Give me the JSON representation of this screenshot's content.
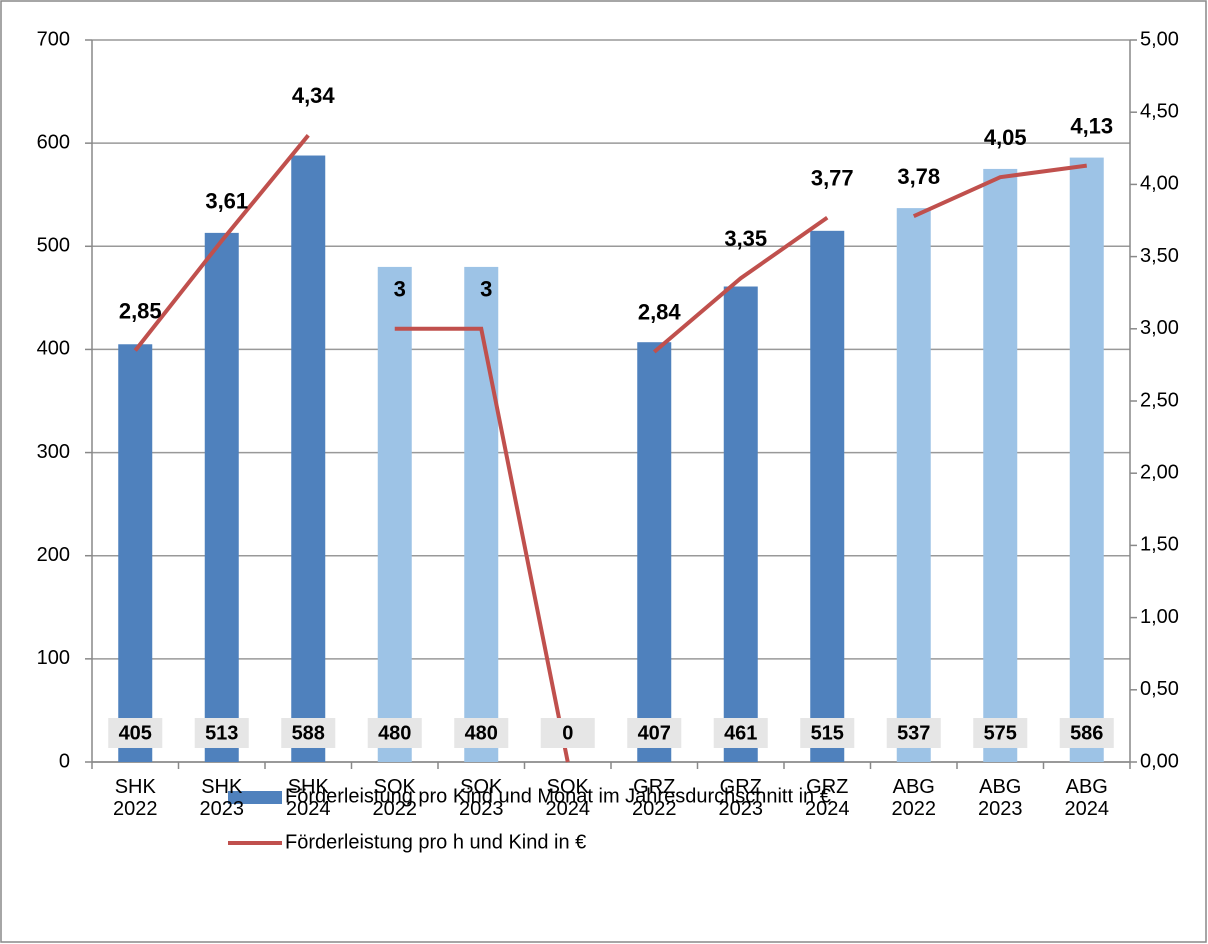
{
  "chart_data": {
    "type": "bar_line",
    "categories": [
      "SHK 2022",
      "SHK 2023",
      "SHK 2024",
      "SOK 2022",
      "SOK 2023",
      "SOK 2024",
      "GRZ 2022",
      "GRZ 2023",
      "GRZ 2024",
      "ABG 2022",
      "ABG 2023",
      "ABG 2024"
    ],
    "series": [
      {
        "name": "Förderleistung pro Kind und Monat im Jahresdurchschnitt in €",
        "type": "bar",
        "color": "#4f81bd",
        "colors": [
          "#4f81bd",
          "#4f81bd",
          "#4f81bd",
          "#9dc3e6",
          "#9dc3e6",
          "#9dc3e6",
          "#4f81bd",
          "#4f81bd",
          "#4f81bd",
          "#9dc3e6",
          "#9dc3e6",
          "#9dc3e6"
        ],
        "values": [
          405,
          513,
          588,
          480,
          480,
          0,
          407,
          461,
          515,
          537,
          575,
          586
        ]
      },
      {
        "name": "Förderleistung pro h und Kind in €",
        "type": "line",
        "axis": "y2",
        "color": "#c0504d",
        "values": [
          2.85,
          3.61,
          4.34,
          3,
          3,
          0,
          2.84,
          3.35,
          3.77,
          3.78,
          4.05,
          4.13
        ],
        "value_labels": [
          "2,85",
          "3,61",
          "4,34",
          "3",
          "3",
          "0",
          "2,84",
          "3,35",
          "3,77",
          "3,78",
          "4,05",
          "4,13"
        ],
        "pieces": [
          3,
          3,
          3,
          3
        ]
      }
    ],
    "ylim": [
      0,
      700
    ],
    "yticks": [
      0,
      100,
      200,
      300,
      400,
      500,
      600,
      700
    ],
    "y2lim": [
      0,
      5
    ],
    "y2ticks": [
      {
        "value": 0,
        "label": "0,00"
      },
      {
        "value": 0.5,
        "label": "0,50"
      },
      {
        "value": 1,
        "label": "1,00"
      },
      {
        "value": 1.5,
        "label": "1,50"
      },
      {
        "value": 2,
        "label": "2,00"
      },
      {
        "value": 2.5,
        "label": "2,50"
      },
      {
        "value": 3,
        "label": "3,00"
      },
      {
        "value": 3.5,
        "label": "3,50"
      },
      {
        "value": 4,
        "label": "4,00"
      },
      {
        "value": 4.5,
        "label": "4,50"
      },
      {
        "value": 5,
        "label": "5,00"
      }
    ],
    "grid": true,
    "legend": "bottom"
  }
}
